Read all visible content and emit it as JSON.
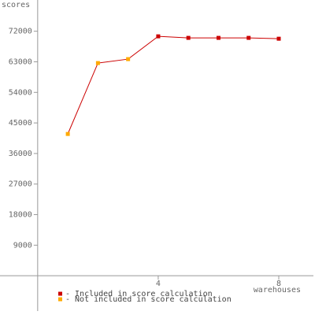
{
  "chart_data": {
    "type": "line",
    "y_label": "scores",
    "x_label": "warehouses",
    "x": [
      1,
      2,
      3,
      4,
      5,
      6,
      7,
      8
    ],
    "line_color": "#cc0000",
    "series": [
      {
        "name": "- Included in score calculation",
        "color": "#cc0000",
        "values": [
          null,
          null,
          null,
          70500,
          70050,
          70050,
          70050,
          69800
        ]
      },
      {
        "name": "- Not included in score calculation",
        "color": "#ffaa00",
        "values": [
          41750,
          62630,
          63790,
          null,
          null,
          null,
          null,
          null
        ]
      }
    ],
    "xlim": [
      -1.25,
      9.15
    ],
    "ylim": [
      -10400,
      81200
    ],
    "xticks": [
      4,
      8
    ],
    "yticks": [
      9000,
      18000,
      27000,
      36000,
      45000,
      54000,
      63000,
      72000
    ]
  }
}
